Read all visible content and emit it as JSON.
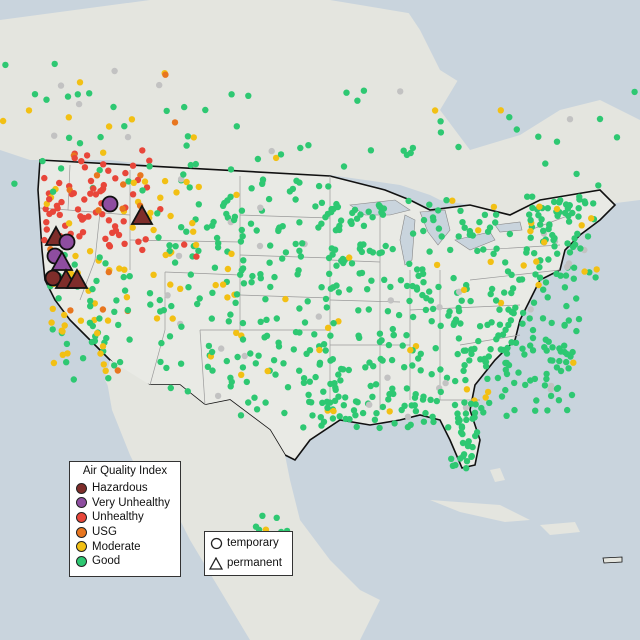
{
  "legend": {
    "title": "Air Quality Index",
    "categories": [
      {
        "label": "Hazardous",
        "color": "#7e2d2a"
      },
      {
        "label": "Very Unhealthy",
        "color": "#8e4da0"
      },
      {
        "label": "Unhealthy",
        "color": "#e8463a"
      },
      {
        "label": "USG",
        "color": "#e8761f"
      },
      {
        "label": "Moderate",
        "color": "#f2c014"
      },
      {
        "label": "Good",
        "color": "#2ec872"
      }
    ]
  },
  "monitor_legend": {
    "temporary": "temporary",
    "permanent": "permanent"
  },
  "colors": {
    "water": "#c9d4dd",
    "land": "#e9eae5",
    "foreign_land": "#e4e5df",
    "state_border": "#9a9a9a",
    "national_border": "#111111",
    "no_data": "#c2c2c2"
  }
}
